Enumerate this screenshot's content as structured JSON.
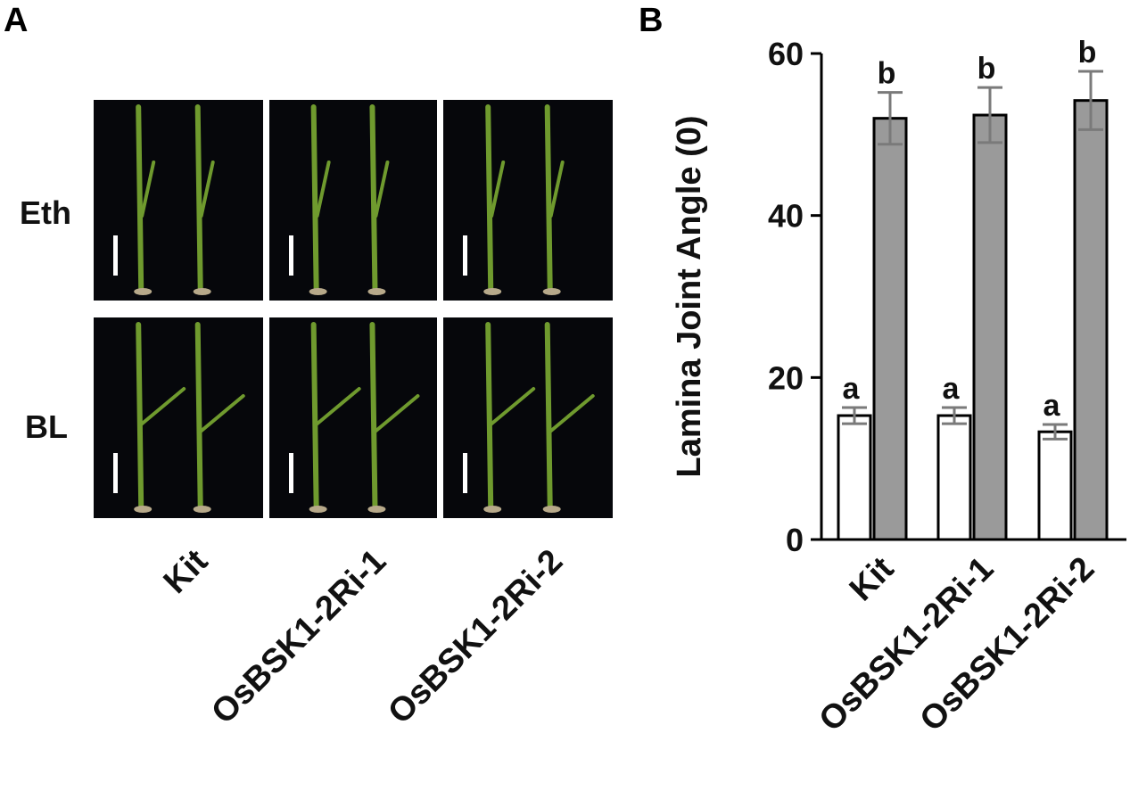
{
  "panel_a": {
    "letter": "A",
    "rows": [
      "Eth",
      "BL"
    ],
    "genotypes": [
      "Kit",
      "OsBSK1-2Ri-1",
      "OsBSK1-2Ri-2"
    ]
  },
  "panel_b": {
    "letter": "B"
  },
  "chart_data": {
    "type": "bar",
    "title": "",
    "ylabel": "Lamina Joint Angle (0)",
    "xlabel": "",
    "categories": [
      "Kit",
      "OsBSK1-2Ri-1",
      "OsBSK1-2Ri-2"
    ],
    "ylim": [
      0,
      60
    ],
    "yticks": [
      0,
      20,
      40,
      60
    ],
    "grid": false,
    "legend": "none",
    "series": [
      {
        "values": [
          15.3,
          15.3,
          13.3
        ],
        "errors": [
          1.0,
          1.0,
          0.9
        ],
        "significance": [
          "a",
          "a",
          "a"
        ],
        "color": "#ffffff"
      },
      {
        "values": [
          52.0,
          52.4,
          54.2
        ],
        "errors": [
          3.2,
          3.4,
          3.6
        ],
        "significance": [
          "b",
          "b",
          "b"
        ],
        "color": "#9a9a9a"
      }
    ]
  },
  "colors": {
    "photo_background": "#06070b",
    "plant_green": "#6f9a2e",
    "bar_grey": "#9a9a9a",
    "error_bar": "#7a7a7a"
  }
}
